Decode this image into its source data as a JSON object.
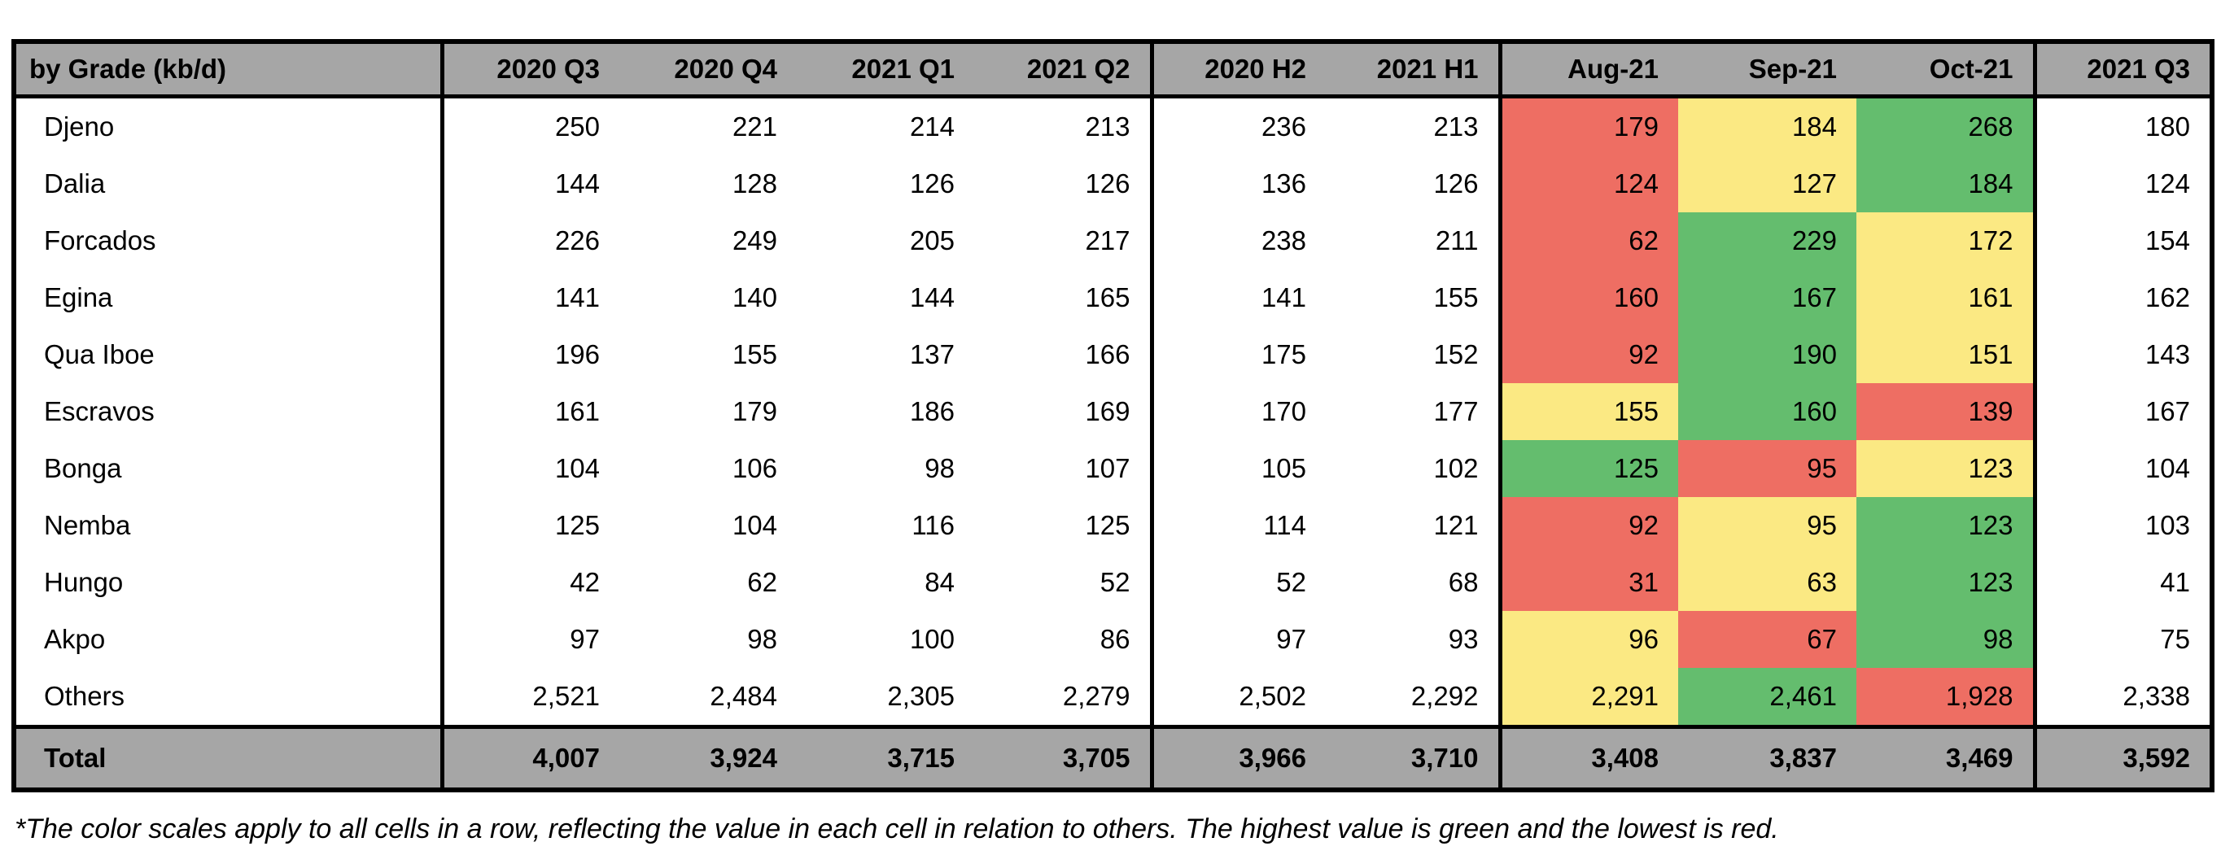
{
  "chart_data": {
    "type": "table",
    "corner_label": "by Grade (kb/d)",
    "column_groups": [
      {
        "key": "quarters",
        "headers": [
          "2020 Q3",
          "2020 Q4",
          "2021 Q1",
          "2021 Q2"
        ]
      },
      {
        "key": "halves",
        "headers": [
          "2020 H2",
          "2021 H1"
        ]
      },
      {
        "key": "months",
        "headers": [
          "Aug-21",
          "Sep-21",
          "Oct-21"
        ]
      },
      {
        "key": "latest",
        "headers": [
          "2021 Q3"
        ]
      }
    ],
    "rows": [
      {
        "grade": "Djeno",
        "quarters": [
          250,
          221,
          214,
          213
        ],
        "halves": [
          236,
          213
        ],
        "months": [
          179,
          184,
          268
        ],
        "month_colors": [
          "red",
          "yellow",
          "green"
        ],
        "latest": [
          180
        ]
      },
      {
        "grade": "Dalia",
        "quarters": [
          144,
          128,
          126,
          126
        ],
        "halves": [
          136,
          126
        ],
        "months": [
          124,
          127,
          184
        ],
        "month_colors": [
          "red",
          "yellow",
          "green"
        ],
        "latest": [
          124
        ]
      },
      {
        "grade": "Forcados",
        "quarters": [
          226,
          249,
          205,
          217
        ],
        "halves": [
          238,
          211
        ],
        "months": [
          62,
          229,
          172
        ],
        "month_colors": [
          "red",
          "green",
          "yellow"
        ],
        "latest": [
          154
        ]
      },
      {
        "grade": "Egina",
        "quarters": [
          141,
          140,
          144,
          165
        ],
        "halves": [
          141,
          155
        ],
        "months": [
          160,
          167,
          161
        ],
        "month_colors": [
          "red",
          "green",
          "yellow"
        ],
        "latest": [
          162
        ]
      },
      {
        "grade": "Qua Iboe",
        "quarters": [
          196,
          155,
          137,
          166
        ],
        "halves": [
          175,
          152
        ],
        "months": [
          92,
          190,
          151
        ],
        "month_colors": [
          "red",
          "green",
          "yellow"
        ],
        "latest": [
          143
        ]
      },
      {
        "grade": "Escravos",
        "quarters": [
          161,
          179,
          186,
          169
        ],
        "halves": [
          170,
          177
        ],
        "months": [
          155,
          160,
          139
        ],
        "month_colors": [
          "yellow",
          "green",
          "red"
        ],
        "latest": [
          167
        ]
      },
      {
        "grade": "Bonga",
        "quarters": [
          104,
          106,
          98,
          107
        ],
        "halves": [
          105,
          102
        ],
        "months": [
          125,
          95,
          123
        ],
        "month_colors": [
          "green",
          "red",
          "yellow"
        ],
        "latest": [
          104
        ]
      },
      {
        "grade": "Nemba",
        "quarters": [
          125,
          104,
          116,
          125
        ],
        "halves": [
          114,
          121
        ],
        "months": [
          92,
          95,
          123
        ],
        "month_colors": [
          "red",
          "yellow",
          "green"
        ],
        "latest": [
          103
        ]
      },
      {
        "grade": "Hungo",
        "quarters": [
          42,
          62,
          84,
          52
        ],
        "halves": [
          52,
          68
        ],
        "months": [
          31,
          63,
          123
        ],
        "month_colors": [
          "red",
          "yellow",
          "green"
        ],
        "latest": [
          41
        ]
      },
      {
        "grade": "Akpo",
        "quarters": [
          97,
          98,
          100,
          86
        ],
        "halves": [
          97,
          93
        ],
        "months": [
          96,
          67,
          98
        ],
        "month_colors": [
          "yellow",
          "red",
          "green"
        ],
        "latest": [
          75
        ]
      },
      {
        "grade": "Others",
        "quarters": [
          2521,
          2484,
          2305,
          2279
        ],
        "halves": [
          2502,
          2292
        ],
        "months": [
          2291,
          2461,
          1928
        ],
        "month_colors": [
          "yellow",
          "green",
          "red"
        ],
        "latest": [
          2338
        ]
      }
    ],
    "total_row": {
      "label": "Total",
      "quarters": [
        4007,
        3924,
        3715,
        3705
      ],
      "halves": [
        3966,
        3710
      ],
      "months": [
        3408,
        3837,
        3469
      ],
      "latest": [
        3592
      ]
    },
    "footnote": "*The color scales apply to all cells in a row, reflecting the value in each cell in relation to others. The highest value is green and the lowest is red."
  },
  "colors": {
    "header_bg": "#a6a6a6",
    "border": "#000000",
    "red": "#ee6e63",
    "yellow": "#fbe983",
    "green": "#64bd6e"
  }
}
